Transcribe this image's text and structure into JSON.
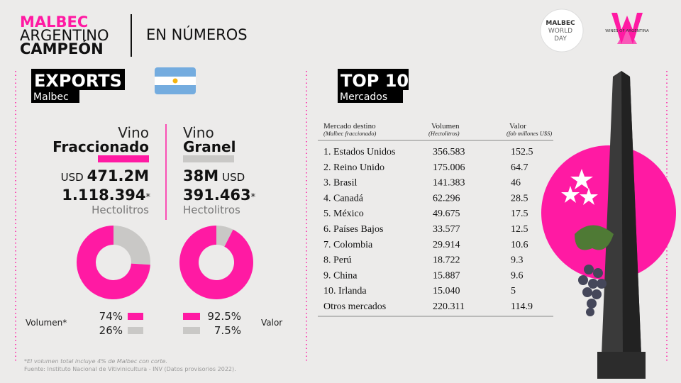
{
  "header": {
    "brand": [
      "MALBEC",
      "ARGENTINO",
      "CAMPEÓN"
    ],
    "title": "EN NÚMEROS"
  },
  "logos": {
    "mwd": [
      "MALBEC",
      "WORLD",
      "DAY"
    ],
    "woa": "WINES OF ARGENTINA"
  },
  "exports": {
    "title": "EXPORTS",
    "subtitle": "Malbec",
    "fraccionado": {
      "line1": "Vino",
      "line2": "Fraccionado",
      "currency": "USD",
      "value": "471.2M",
      "volume": "1.118.394",
      "asterisk": "*",
      "unit": "Hectolitros"
    },
    "granel": {
      "line1": "Vino",
      "line2": "Granel",
      "currency": "USD",
      "value": "38M",
      "volume": "391.463",
      "asterisk": "*",
      "unit": "Hectolitros"
    }
  },
  "donuts": [
    {
      "label": "Volumen*",
      "values": [
        74,
        26
      ],
      "value_labels": [
        "74%",
        "26%"
      ],
      "colors": [
        "#ff1aa3",
        "#c9c8c6"
      ]
    },
    {
      "label": "Valor",
      "values": [
        92.5,
        7.5
      ],
      "value_labels": [
        "92.5%",
        "7.5%"
      ],
      "colors": [
        "#ff1aa3",
        "#c9c8c6"
      ]
    }
  ],
  "top10": {
    "title": "TOP 10",
    "subtitle": "Mercados"
  },
  "table": {
    "headers": [
      [
        "Mercado destino",
        "(Malbec fraccionado)"
      ],
      [
        "Volumen",
        "(Hectolitros)"
      ],
      [
        "Valor",
        "(fob millones U$S)"
      ]
    ],
    "rows": [
      [
        "1. Estados Unidos",
        "356.583",
        "152.5"
      ],
      [
        "2. Reino Unido",
        "175.006",
        "64.7"
      ],
      [
        "3. Brasil",
        "141.383",
        "46"
      ],
      [
        "4. Canadá",
        "62.296",
        "28.5"
      ],
      [
        "5. México",
        "49.675",
        "17.5"
      ],
      [
        "6. Países Bajos",
        "33.577",
        "12.5"
      ],
      [
        "7. Colombia",
        "29.914",
        "10.6"
      ],
      [
        "8. Perú",
        "18.722",
        "9.3"
      ],
      [
        "9. China",
        "15.887",
        "9.6"
      ],
      [
        "10. Irlanda",
        "15.040",
        "5"
      ],
      [
        "Otros mercados",
        "220.311",
        "114.9"
      ]
    ]
  },
  "footnotes": [
    "*El volumen total incluye 4% de Malbec con corte.",
    "Fuente: Instituto Nacional de Vitivinicultura - INV (Datos provisorios 2022)."
  ]
}
